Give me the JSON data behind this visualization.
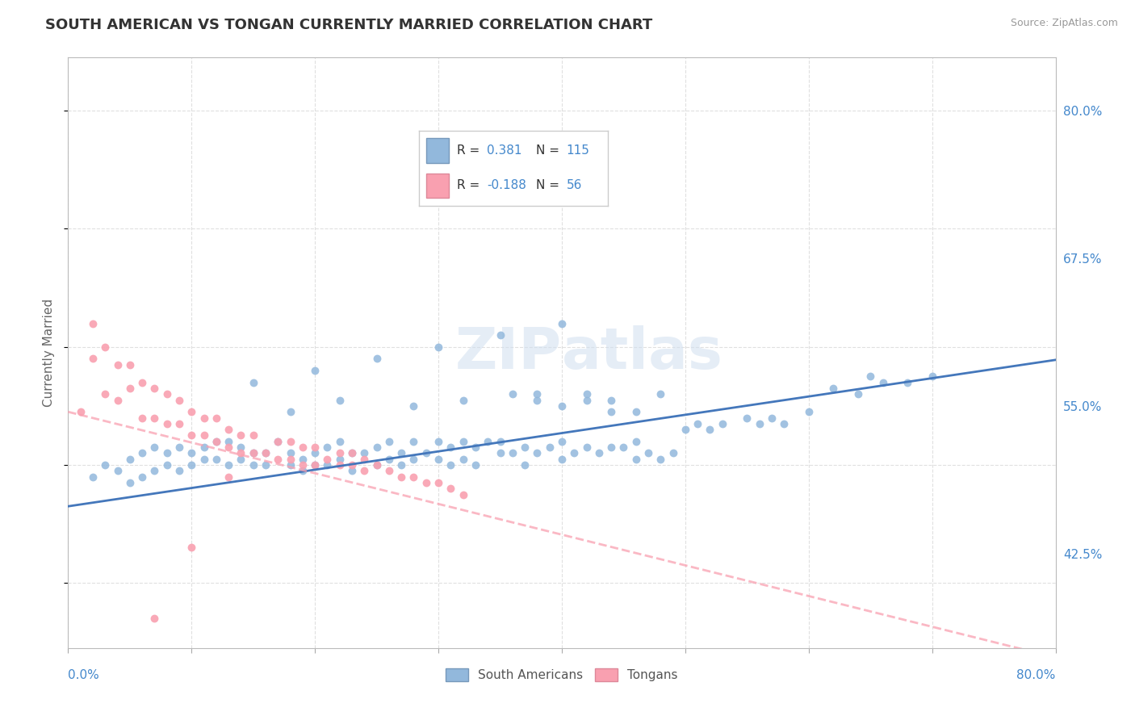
{
  "title": "SOUTH AMERICAN VS TONGAN CURRENTLY MARRIED CORRELATION CHART",
  "source": "Source: ZipAtlas.com",
  "ylabel": "Currently Married",
  "ylabel_right_ticks": [
    "80.0%",
    "67.5%",
    "55.0%",
    "42.5%"
  ],
  "ylabel_right_y": [
    0.8,
    0.675,
    0.55,
    0.425
  ],
  "xmin": 0.0,
  "xmax": 0.8,
  "ymin": 0.345,
  "ymax": 0.845,
  "blue_color": "#92B8DC",
  "pink_color": "#F9A0B0",
  "blue_line_color": "#4477BB",
  "pink_line_color": "#F9A0B0",
  "blue_slope": 0.155,
  "blue_intercept": 0.465,
  "pink_slope": -0.26,
  "pink_intercept": 0.545,
  "watermark_text": "ZIPatlas",
  "grid_color": "#DDDDDD",
  "blue_scatter_x": [
    0.02,
    0.03,
    0.04,
    0.05,
    0.05,
    0.06,
    0.06,
    0.07,
    0.07,
    0.08,
    0.08,
    0.09,
    0.09,
    0.1,
    0.1,
    0.11,
    0.11,
    0.12,
    0.12,
    0.13,
    0.13,
    0.14,
    0.14,
    0.15,
    0.15,
    0.16,
    0.16,
    0.17,
    0.18,
    0.18,
    0.19,
    0.19,
    0.2,
    0.2,
    0.21,
    0.21,
    0.22,
    0.22,
    0.23,
    0.23,
    0.24,
    0.25,
    0.25,
    0.26,
    0.26,
    0.27,
    0.27,
    0.28,
    0.28,
    0.29,
    0.3,
    0.3,
    0.31,
    0.31,
    0.32,
    0.32,
    0.33,
    0.33,
    0.34,
    0.35,
    0.35,
    0.36,
    0.37,
    0.37,
    0.38,
    0.39,
    0.4,
    0.4,
    0.41,
    0.42,
    0.43,
    0.44,
    0.45,
    0.46,
    0.46,
    0.47,
    0.48,
    0.49,
    0.5,
    0.51,
    0.52,
    0.53,
    0.55,
    0.56,
    0.57,
    0.58,
    0.6,
    0.38,
    0.4,
    0.42,
    0.44,
    0.46,
    0.62,
    0.64,
    0.65,
    0.66,
    0.68,
    0.7,
    0.4,
    0.35,
    0.25,
    0.3,
    0.2,
    0.15,
    0.22,
    0.18,
    0.28,
    0.32,
    0.36,
    0.38,
    0.42,
    0.44,
    0.48
  ],
  "blue_scatter_y": [
    0.49,
    0.5,
    0.495,
    0.505,
    0.485,
    0.51,
    0.49,
    0.515,
    0.495,
    0.51,
    0.5,
    0.515,
    0.495,
    0.51,
    0.5,
    0.515,
    0.505,
    0.52,
    0.505,
    0.52,
    0.5,
    0.515,
    0.505,
    0.51,
    0.5,
    0.51,
    0.5,
    0.52,
    0.51,
    0.5,
    0.505,
    0.495,
    0.51,
    0.5,
    0.515,
    0.5,
    0.52,
    0.505,
    0.51,
    0.495,
    0.51,
    0.515,
    0.5,
    0.52,
    0.505,
    0.51,
    0.5,
    0.52,
    0.505,
    0.51,
    0.52,
    0.505,
    0.515,
    0.5,
    0.52,
    0.505,
    0.515,
    0.5,
    0.52,
    0.52,
    0.51,
    0.51,
    0.515,
    0.5,
    0.51,
    0.515,
    0.52,
    0.505,
    0.51,
    0.515,
    0.51,
    0.515,
    0.515,
    0.52,
    0.505,
    0.51,
    0.505,
    0.51,
    0.53,
    0.535,
    0.53,
    0.535,
    0.54,
    0.535,
    0.54,
    0.535,
    0.545,
    0.56,
    0.55,
    0.555,
    0.545,
    0.545,
    0.565,
    0.56,
    0.575,
    0.57,
    0.57,
    0.575,
    0.62,
    0.61,
    0.59,
    0.6,
    0.58,
    0.57,
    0.555,
    0.545,
    0.55,
    0.555,
    0.56,
    0.555,
    0.56,
    0.555,
    0.56
  ],
  "pink_scatter_x": [
    0.01,
    0.02,
    0.02,
    0.03,
    0.03,
    0.04,
    0.04,
    0.05,
    0.05,
    0.06,
    0.06,
    0.07,
    0.07,
    0.08,
    0.08,
    0.09,
    0.09,
    0.1,
    0.1,
    0.11,
    0.11,
    0.12,
    0.12,
    0.13,
    0.13,
    0.14,
    0.14,
    0.15,
    0.15,
    0.16,
    0.17,
    0.17,
    0.18,
    0.18,
    0.19,
    0.19,
    0.2,
    0.2,
    0.21,
    0.22,
    0.22,
    0.23,
    0.23,
    0.24,
    0.24,
    0.25,
    0.26,
    0.27,
    0.28,
    0.29,
    0.3,
    0.31,
    0.32,
    0.07,
    0.1,
    0.13
  ],
  "pink_scatter_y": [
    0.545,
    0.59,
    0.62,
    0.56,
    0.6,
    0.555,
    0.585,
    0.565,
    0.585,
    0.54,
    0.57,
    0.54,
    0.565,
    0.535,
    0.56,
    0.535,
    0.555,
    0.525,
    0.545,
    0.525,
    0.54,
    0.52,
    0.54,
    0.515,
    0.53,
    0.51,
    0.525,
    0.51,
    0.525,
    0.51,
    0.505,
    0.52,
    0.505,
    0.52,
    0.5,
    0.515,
    0.5,
    0.515,
    0.505,
    0.5,
    0.51,
    0.5,
    0.51,
    0.495,
    0.505,
    0.5,
    0.495,
    0.49,
    0.49,
    0.485,
    0.485,
    0.48,
    0.475,
    0.37,
    0.43,
    0.49
  ]
}
